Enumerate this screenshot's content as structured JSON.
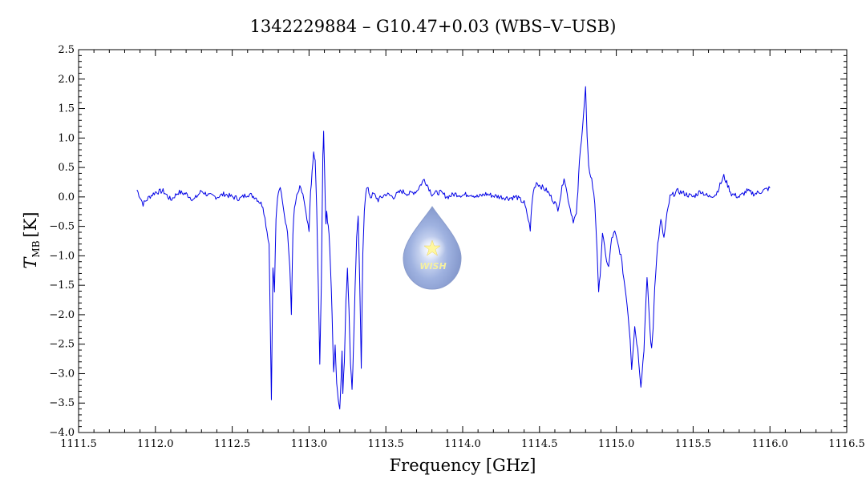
{
  "chart_data": {
    "type": "line",
    "title": "1342229884 – G10.47+0.03 (WBS–V–USB)",
    "xlabel": "Frequency [GHz]",
    "ylabel_main": "T",
    "ylabel_sub": "MB",
    "ylabel_unit": "[K]",
    "xlim": [
      1111.5,
      1116.5
    ],
    "ylim": [
      -4.0,
      2.5
    ],
    "x_ticks": [
      1111.5,
      1112.0,
      1112.5,
      1113.0,
      1113.5,
      1114.0,
      1114.5,
      1115.0,
      1115.5,
      1116.0,
      1116.5
    ],
    "x_tick_labels": [
      "1111.5",
      "1112.0",
      "1112.5",
      "1113.0",
      "1113.5",
      "1114.0",
      "1114.5",
      "1115.0",
      "1115.5",
      "1116.0",
      "1116.5"
    ],
    "y_ticks": [
      2.5,
      2.0,
      1.5,
      1.0,
      0.5,
      0.0,
      -0.5,
      -1.0,
      -1.5,
      -2.0,
      -2.5,
      -3.0,
      -3.5,
      -4.0
    ],
    "y_tick_labels": [
      "2.5",
      "2.0",
      "1.5",
      "1.0",
      "0.5",
      "0.0",
      "−0.5",
      "−1.0",
      "−1.5",
      "−2.0",
      "−2.5",
      "−3.0",
      "−3.5",
      "−4.0"
    ],
    "grid": false,
    "logo_text": "WISH",
    "series": [
      {
        "color": "#0000e6",
        "x": [
          1111.88,
          1111.92,
          1111.96,
          1112.0,
          1112.05,
          1112.1,
          1112.15,
          1112.2,
          1112.25,
          1112.3,
          1112.35,
          1112.4,
          1112.45,
          1112.5,
          1112.55,
          1112.6,
          1112.65,
          1112.7,
          1112.74,
          1112.755,
          1112.765,
          1112.775,
          1112.785,
          1112.795,
          1112.805,
          1112.82,
          1112.84,
          1112.86,
          1112.875,
          1112.885,
          1112.895,
          1112.905,
          1112.92,
          1112.94,
          1112.96,
          1112.98,
          1113.0,
          1113.01,
          1113.02,
          1113.03,
          1113.04,
          1113.05,
          1113.06,
          1113.07,
          1113.08,
          1113.09,
          1113.095,
          1113.1,
          1113.105,
          1113.11,
          1113.115,
          1113.12,
          1113.13,
          1113.14,
          1113.15,
          1113.16,
          1113.17,
          1113.18,
          1113.19,
          1113.2,
          1113.21,
          1113.215,
          1113.22,
          1113.23,
          1113.24,
          1113.25,
          1113.26,
          1113.27,
          1113.28,
          1113.29,
          1113.3,
          1113.31,
          1113.32,
          1113.33,
          1113.34,
          1113.35,
          1113.36,
          1113.37,
          1113.38,
          1113.39,
          1113.4,
          1113.42,
          1113.45,
          1113.5,
          1113.55,
          1113.6,
          1113.65,
          1113.7,
          1113.75,
          1113.8,
          1113.85,
          1113.9,
          1113.95,
          1114.0,
          1114.05,
          1114.1,
          1114.15,
          1114.2,
          1114.25,
          1114.3,
          1114.35,
          1114.4,
          1114.42,
          1114.44,
          1114.45,
          1114.46,
          1114.48,
          1114.5,
          1114.55,
          1114.6,
          1114.62,
          1114.64,
          1114.66,
          1114.68,
          1114.7,
          1114.72,
          1114.74,
          1114.75,
          1114.76,
          1114.78,
          1114.8,
          1114.81,
          1114.82,
          1114.84,
          1114.86,
          1114.875,
          1114.885,
          1114.895,
          1114.91,
          1114.93,
          1114.95,
          1114.97,
          1114.99,
          1115.01,
          1115.03,
          1115.05,
          1115.07,
          1115.09,
          1115.1,
          1115.12,
          1115.14,
          1115.16,
          1115.18,
          1115.19,
          1115.2,
          1115.21,
          1115.22,
          1115.23,
          1115.24,
          1115.25,
          1115.27,
          1115.29,
          1115.31,
          1115.33,
          1115.35,
          1115.4,
          1115.45,
          1115.5,
          1115.55,
          1115.6,
          1115.65,
          1115.7,
          1115.75,
          1115.8,
          1115.85,
          1115.9,
          1115.95,
          1116.0
        ],
        "y": [
          0.12,
          -0.12,
          0.0,
          0.08,
          0.1,
          -0.05,
          0.08,
          0.05,
          -0.05,
          0.1,
          0.02,
          0.0,
          0.05,
          0.0,
          -0.03,
          0.05,
          0.0,
          -0.15,
          -0.8,
          -3.4,
          -1.2,
          -1.6,
          -0.4,
          0.0,
          0.15,
          0.1,
          -0.3,
          -0.6,
          -1.2,
          -2.0,
          -0.6,
          -0.2,
          0.0,
          0.15,
          0.05,
          -0.3,
          -0.6,
          0.1,
          0.4,
          0.75,
          0.6,
          -0.2,
          -1.5,
          -2.8,
          -1.5,
          0.7,
          1.1,
          0.6,
          0.0,
          -0.5,
          -0.2,
          -0.4,
          -0.6,
          -1.2,
          -2.0,
          -3.0,
          -2.5,
          -3.2,
          -3.4,
          -3.6,
          -3.0,
          -2.6,
          -3.3,
          -2.8,
          -1.8,
          -1.2,
          -1.9,
          -2.8,
          -3.3,
          -2.5,
          -1.5,
          -0.7,
          -0.3,
          -1.5,
          -2.9,
          -1.0,
          -0.2,
          0.1,
          0.15,
          0.08,
          0.0,
          0.05,
          -0.05,
          0.05,
          0.0,
          0.1,
          0.05,
          0.1,
          0.3,
          0.05,
          0.08,
          0.0,
          0.05,
          0.03,
          0.05,
          0.0,
          0.05,
          0.02,
          0.0,
          -0.02,
          0.0,
          -0.1,
          -0.3,
          -0.55,
          -0.15,
          0.1,
          0.25,
          0.2,
          0.1,
          -0.1,
          -0.2,
          0.05,
          0.35,
          0.05,
          -0.2,
          -0.4,
          -0.3,
          0.1,
          0.6,
          1.2,
          1.85,
          1.0,
          0.5,
          0.3,
          -0.1,
          -0.9,
          -1.65,
          -1.3,
          -0.6,
          -1.0,
          -1.2,
          -0.7,
          -0.6,
          -0.8,
          -1.0,
          -1.4,
          -1.8,
          -2.4,
          -2.9,
          -2.2,
          -2.6,
          -3.2,
          -2.6,
          -1.9,
          -1.4,
          -1.8,
          -2.3,
          -2.6,
          -2.2,
          -1.5,
          -0.8,
          -0.4,
          -0.7,
          -0.3,
          0.0,
          0.1,
          0.05,
          0.0,
          0.1,
          0.0,
          0.05,
          0.35,
          0.05,
          0.0,
          0.1,
          0.05,
          0.1,
          0.15
        ]
      }
    ]
  }
}
